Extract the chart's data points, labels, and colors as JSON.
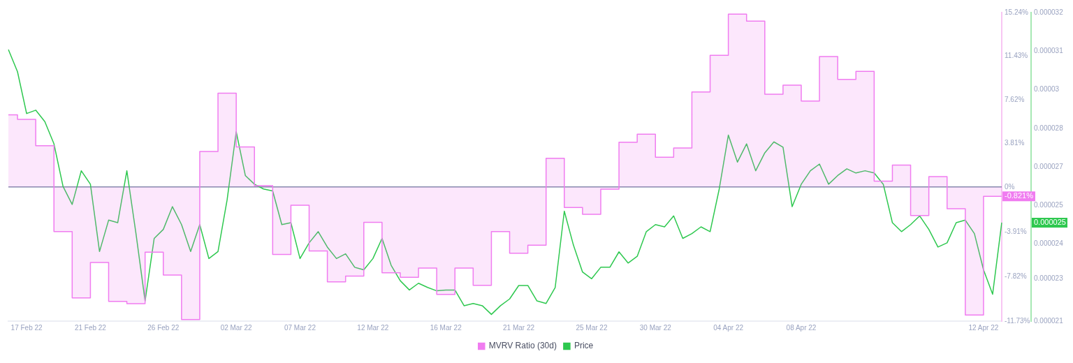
{
  "chart_data": {
    "type": "line",
    "categories": [
      null,
      null,
      "17 Feb 22",
      null,
      null,
      null,
      null,
      null,
      null,
      "21 Feb 22",
      null,
      null,
      null,
      null,
      null,
      null,
      null,
      "26 Feb 22",
      null,
      null,
      null,
      null,
      null,
      null,
      null,
      "02 Mar 22",
      null,
      null,
      null,
      null,
      null,
      null,
      "07 Mar 22",
      null,
      null,
      null,
      null,
      null,
      null,
      null,
      "12 Mar 22",
      null,
      null,
      null,
      null,
      null,
      null,
      null,
      "16 Mar 22",
      null,
      null,
      null,
      null,
      null,
      null,
      null,
      "21 Mar 22",
      null,
      null,
      null,
      null,
      null,
      null,
      null,
      "25 Mar 22",
      null,
      null,
      null,
      null,
      null,
      null,
      "30 Mar 22",
      null,
      null,
      null,
      null,
      null,
      null,
      null,
      "04 Apr 22",
      null,
      null,
      null,
      null,
      null,
      null,
      null,
      "08 Apr 22",
      null,
      null,
      null,
      null,
      null,
      null,
      null,
      null,
      null,
      null,
      null,
      null,
      null,
      null,
      null,
      null,
      null,
      null,
      null,
      "12 Apr 22",
      null,
      null
    ],
    "series": [
      {
        "name": "MVRV Ratio (30d)",
        "type": "step",
        "color": "#f07cf0",
        "axis": "y",
        "values": [
          6.3,
          6.3,
          5.9,
          5.9,
          3.6,
          3.6,
          -3.9,
          -3.9,
          -9.7,
          -9.7,
          -6.6,
          -6.6,
          -10.0,
          -10.0,
          -10.2,
          -10.2,
          -5.7,
          -5.7,
          -7.7,
          -7.7,
          -11.6,
          -11.6,
          3.1,
          3.1,
          8.2,
          8.2,
          3.5,
          3.5,
          0.1,
          0.1,
          -5.9,
          -5.9,
          -1.6,
          -1.6,
          -5.6,
          -5.6,
          -8.3,
          -8.3,
          -7.8,
          -7.8,
          -3.1,
          -3.1,
          -7.5,
          -7.5,
          -7.9,
          -7.9,
          -7.1,
          -7.1,
          -9.4,
          -9.4,
          -7.1,
          -7.1,
          -8.6,
          -8.6,
          -3.9,
          -3.9,
          -5.8,
          -5.8,
          -5.1,
          -5.1,
          2.5,
          2.5,
          -1.8,
          -1.8,
          -2.4,
          -2.4,
          -0.2,
          -0.2,
          3.9,
          3.9,
          4.6,
          4.6,
          2.6,
          2.6,
          3.4,
          3.4,
          8.3,
          8.3,
          11.5,
          11.5,
          15.1,
          15.1,
          14.5,
          14.5,
          8.1,
          8.1,
          8.9,
          8.9,
          7.5,
          7.5,
          11.4,
          11.4,
          9.4,
          9.4,
          10.1,
          10.1,
          0.5,
          0.5,
          1.9,
          1.9,
          -2.5,
          -2.5,
          0.9,
          0.9,
          -1.9,
          -1.9,
          -11.2,
          -11.2,
          -0.821,
          -0.821
        ]
      },
      {
        "name": "Price",
        "color": "#2ec84f",
        "axis": "y2",
        "values": [
          3.068e-05,
          2.989e-05,
          2.84e-05,
          2.852e-05,
          2.811e-05,
          2.732e-05,
          2.58e-05,
          2.516e-05,
          2.636e-05,
          2.588e-05,
          2.348e-05,
          2.46e-05,
          2.451e-05,
          2.636e-05,
          2.412e-05,
          2.172e-05,
          2.395e-05,
          2.427e-05,
          2.508e-05,
          2.444e-05,
          2.348e-05,
          2.444e-05,
          2.323e-05,
          2.348e-05,
          2.532e-05,
          2.775e-05,
          2.619e-05,
          2.588e-05,
          2.571e-05,
          2.564e-05,
          2.444e-05,
          2.451e-05,
          2.323e-05,
          2.379e-05,
          2.419e-05,
          2.364e-05,
          2.323e-05,
          2.34e-05,
          2.292e-05,
          2.283e-05,
          2.323e-05,
          2.395e-05,
          2.299e-05,
          2.244e-05,
          2.211e-05,
          2.235e-05,
          2.22e-05,
          2.208e-05,
          2.211e-05,
          2.211e-05,
          2.155e-05,
          2.163e-05,
          2.155e-05,
          2.124e-05,
          2.155e-05,
          2.179e-05,
          2.227e-05,
          2.227e-05,
          2.172e-05,
          2.163e-05,
          2.22e-05,
          2.492e-05,
          2.371e-05,
          2.275e-05,
          2.251e-05,
          2.292e-05,
          2.292e-05,
          2.347e-05,
          2.307e-05,
          2.331e-05,
          2.419e-05,
          2.444e-05,
          2.436e-05,
          2.475e-05,
          2.395e-05,
          2.412e-05,
          2.436e-05,
          2.419e-05,
          2.571e-05,
          2.763e-05,
          2.667e-05,
          2.732e-05,
          2.636e-05,
          2.7e-05,
          2.739e-05,
          2.72e-05,
          2.508e-05,
          2.588e-05,
          2.636e-05,
          2.66e-05,
          2.588e-05,
          2.619e-05,
          2.643e-05,
          2.628e-05,
          2.636e-05,
          2.628e-05,
          2.588e-05,
          2.451e-05,
          2.419e-05,
          2.444e-05,
          2.475e-05,
          2.427e-05,
          2.364e-05,
          2.379e-05,
          2.451e-05,
          2.46e-05,
          2.412e-05,
          2.283e-05,
          2.196e-05,
          2.451e-05
        ]
      }
    ],
    "ylim": [
      -11.73,
      15.24
    ],
    "yticks": [
      {
        "value": 15.24,
        "label": "15.24%"
      },
      {
        "value": 11.43,
        "label": "11.43%"
      },
      {
        "value": 7.62,
        "label": "7.62%"
      },
      {
        "value": 3.81,
        "label": "3.81%"
      },
      {
        "value": 0,
        "label": "0%"
      },
      {
        "value": -3.91,
        "label": "-3.91%"
      },
      {
        "value": -7.82,
        "label": "-7.82%"
      },
      {
        "value": -11.73,
        "label": "-11.73%"
      }
    ],
    "y2lim": [
      2.1e-05,
      3.2e-05
    ],
    "y2ticks": [
      {
        "value": 3.2e-05,
        "label": "0.000032"
      },
      {
        "value": 3.0625e-05,
        "label": "0.000031"
      },
      {
        "value": 2.925e-05,
        "label": "0.00003"
      },
      {
        "value": 2.7875e-05,
        "label": "0.000028"
      },
      {
        "value": 2.65e-05,
        "label": "0.000027"
      },
      {
        "value": 2.5125e-05,
        "label": "0.000025"
      },
      {
        "value": 2.375e-05,
        "label": "0.000024"
      },
      {
        "value": 2.25e-05,
        "label": "0.000023"
      },
      {
        "value": 2.1e-05,
        "label": "0.000021"
      }
    ],
    "ref_lines": [
      {
        "axis": "y",
        "value": 0,
        "color": "#7f88a8"
      }
    ],
    "annotations": [
      "-0.821%",
      "0.000025"
    ],
    "grid": false,
    "legend": "bottom",
    "marker": "none"
  }
}
